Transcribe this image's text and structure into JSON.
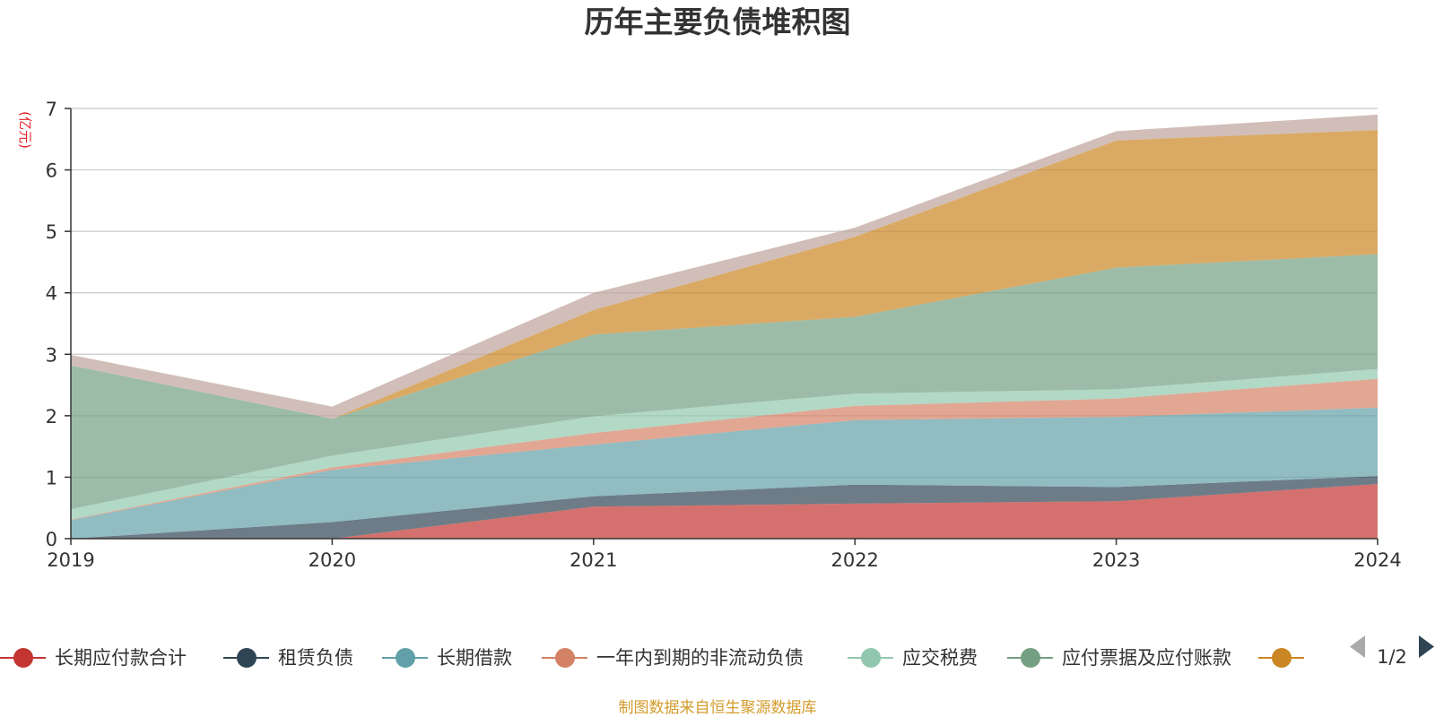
{
  "chart_data": {
    "type": "area",
    "stacked": true,
    "title": "历年主要负债堆积图",
    "unit_label": "(亿元)",
    "x": [
      "2019",
      "2020",
      "2021",
      "2022",
      "2023",
      "2024"
    ],
    "yticks": [
      "0",
      "1",
      "2",
      "3",
      "4",
      "5",
      "6",
      "7"
    ],
    "ylim": [
      0,
      7
    ],
    "grid": true,
    "series": [
      {
        "name": "长期应付款合计",
        "color": "#c23531",
        "values": [
          0,
          0,
          0.52,
          0.57,
          0.61,
          0.89
        ]
      },
      {
        "name": "租赁负债",
        "color": "#2f4554",
        "values": [
          0,
          0.27,
          0.17,
          0.31,
          0.23,
          0.13
        ]
      },
      {
        "name": "长期借款",
        "color": "#61a0a8",
        "values": [
          0.3,
          0.85,
          0.84,
          1.05,
          1.14,
          1.11
        ]
      },
      {
        "name": "一年内到期的非流动负债",
        "color": "#d48265",
        "values": [
          0.01,
          0.04,
          0.19,
          0.23,
          0.3,
          0.47
        ]
      },
      {
        "name": "应交税费",
        "color": "#91c7ae",
        "values": [
          0.17,
          0.19,
          0.27,
          0.2,
          0.15,
          0.16
        ]
      },
      {
        "name": "应付票据及应付账款",
        "color": "#749f83",
        "values": [
          2.34,
          0.6,
          1.33,
          1.25,
          1.98,
          1.87
        ]
      },
      {
        "name": "",
        "color": "#ca8622",
        "values": [
          0,
          0,
          0.4,
          1.3,
          2.07,
          2.02
        ]
      },
      {
        "name": "",
        "color": "#bda29a",
        "values": [
          0.17,
          0.2,
          0.28,
          0.15,
          0.15,
          0.25
        ]
      }
    ],
    "legend": {
      "position": "bottom",
      "page": "1/2",
      "visible_count": 7
    },
    "source": "制图数据来自恒生聚源数据库"
  }
}
